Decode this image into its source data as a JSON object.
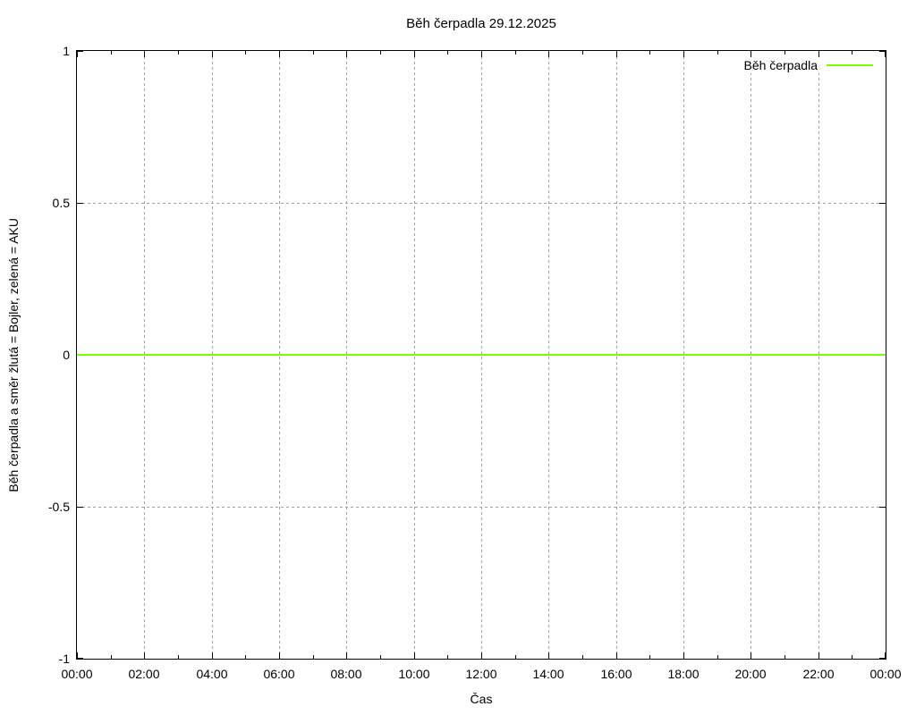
{
  "title": "Běh čerpadla 29.12.2025",
  "x_axis": {
    "label": "Čas",
    "ticks": [
      "00:00",
      "02:00",
      "04:00",
      "06:00",
      "08:00",
      "10:00",
      "12:00",
      "14:00",
      "16:00",
      "18:00",
      "20:00",
      "22:00",
      "00:00"
    ]
  },
  "y_axis": {
    "label": "Běh čerpadla a směr žlutá = Bojler, zelená = AKU",
    "ticks": [
      "1",
      "0.5",
      "0",
      "-0.5",
      "-1"
    ]
  },
  "legend": {
    "label": "Běh čerpadla",
    "position": "top-right",
    "line_color": "#7cfc00"
  },
  "colors": {
    "series_green": "#7cfc00",
    "grid": "#a0a0a0",
    "axis": "#000000",
    "background": "#ffffff"
  },
  "chart_data": {
    "type": "line",
    "title": "Běh čerpadla 29.12.2025",
    "xlabel": "Čas",
    "ylabel": "Běh čerpadla a směr žlutá = Bojler, zelená = AKU",
    "x": [
      "00:00",
      "02:00",
      "04:00",
      "06:00",
      "08:00",
      "10:00",
      "12:00",
      "14:00",
      "16:00",
      "18:00",
      "20:00",
      "22:00",
      "24:00"
    ],
    "series": [
      {
        "name": "Běh čerpadla",
        "color": "#7cfc00",
        "values": [
          0,
          0,
          0,
          0,
          0,
          0,
          0,
          0,
          0,
          0,
          0,
          0,
          0
        ]
      }
    ],
    "ylim": [
      -1,
      1
    ],
    "y_tick_interval": 0.5,
    "x_tick_interval_hours": 2,
    "x_minor_tick_interval_hours": 1,
    "grid": true,
    "grid_style": "dotted",
    "legend_position": "top-right"
  }
}
